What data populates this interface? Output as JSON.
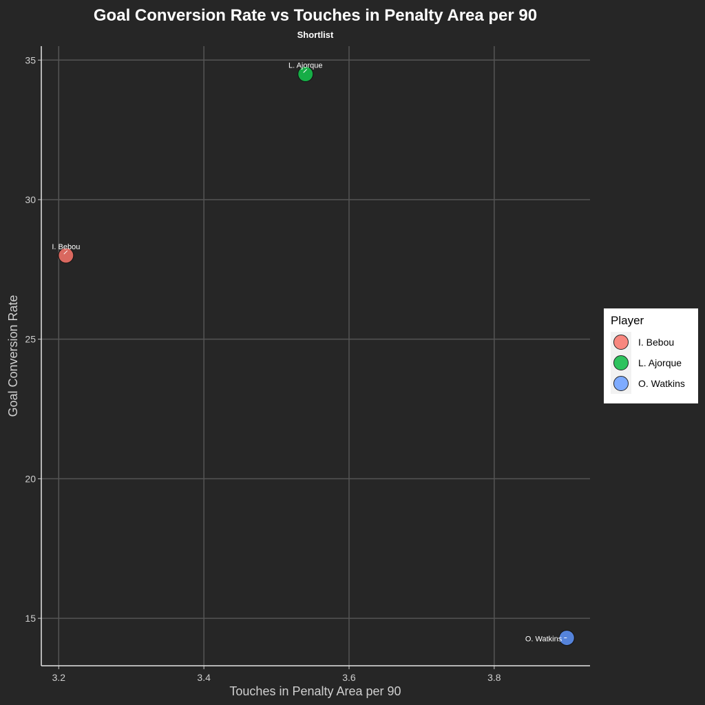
{
  "chart_data": {
    "type": "scatter",
    "title": "Goal Conversion Rate vs Touches in Penalty Area per 90",
    "subtitle": "Shortlist",
    "xlabel": "Touches in Penalty Area per 90",
    "ylabel": "Goal Conversion Rate",
    "xlim": [
      3.176,
      3.932
    ],
    "ylim": [
      13.3,
      35.5
    ],
    "xticks": [
      3.2,
      3.4,
      3.6,
      3.8
    ],
    "xtick_labels": [
      "3.2",
      "3.4",
      "3.6",
      "3.8"
    ],
    "yticks": [
      15,
      20,
      25,
      30,
      35
    ],
    "ytick_labels": [
      "15",
      "20",
      "25",
      "30",
      "35"
    ],
    "grid": true,
    "legend": {
      "title": "Player",
      "placement": "right"
    },
    "points": [
      {
        "name": "I. Bebou",
        "x": 3.21,
        "y": 28.0,
        "color": "#d9685f",
        "legend_color": "#f8877f",
        "label_pos": "above"
      },
      {
        "name": "L. Ajorque",
        "x": 3.54,
        "y": 34.5,
        "color": "#16ad46",
        "legend_color": "#2ec35e",
        "label_pos": "above"
      },
      {
        "name": "O. Watkins",
        "x": 3.9,
        "y": 14.3,
        "color": "#5583da",
        "legend_color": "#7eabff",
        "label_pos": "left"
      }
    ]
  }
}
